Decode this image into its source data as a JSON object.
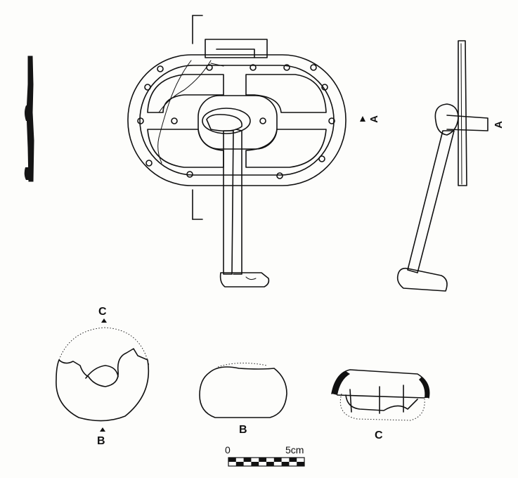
{
  "labels": {
    "section_a": "A",
    "section_b": "B",
    "section_c": "C",
    "disc_top": "C",
    "disc_bottom": "B",
    "view_a_front": "A",
    "view_a_side": "A"
  },
  "scale_bar": {
    "start_label": "0",
    "end_label": "5cm",
    "segments": 10
  },
  "colors": {
    "ink": "#111111",
    "paper": "#fdfdfb"
  }
}
